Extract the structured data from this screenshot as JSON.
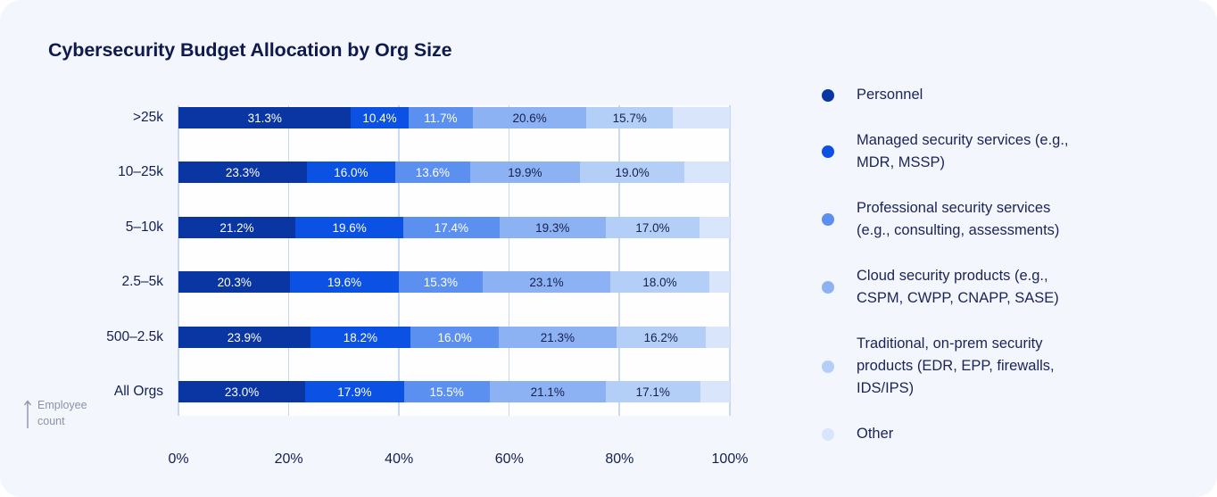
{
  "title": "Cybersecurity Budget Allocation by Org Size",
  "axis": {
    "x_ticks": [
      "0%",
      "20%",
      "40%",
      "60%",
      "80%",
      "100%"
    ],
    "y_note": "Employee count"
  },
  "colors": {
    "card_background": "#F3F6FD",
    "plot_background": "#FEFEFF",
    "gridline": "#C9D9F0",
    "title_text": "#0E1A4D",
    "axis_text": "#13204E",
    "legend_text": "#1B2456",
    "note_text": "#8B93A7"
  },
  "legend": {
    "items": [
      {
        "label": "Personnel",
        "color": "#0A36A3"
      },
      {
        "label": "Managed security services (e.g., MDR, MSSP)",
        "color": "#0B51E4"
      },
      {
        "label": "Professional security services (e.g., consulting, assessments)",
        "color": "#5C90F0"
      },
      {
        "label": "Cloud security products (e.g., CSPM, CWPP, CNAPP, SASE)",
        "color": "#8DB2F3"
      },
      {
        "label": "Traditional, on-prem security products (EDR, EPP, firewalls, IDS/IPS)",
        "color": "#B3CFF8"
      },
      {
        "label": "Other",
        "color": "#D8E5FB"
      }
    ]
  },
  "chart_data": {
    "type": "bar",
    "variant": "horizontal-stacked-percent",
    "title": "Cybersecurity Budget Allocation by Org Size",
    "categories": [
      ">25k",
      "10–25k",
      "5–10k",
      "2.5–5k",
      "500–2.5k",
      "All Orgs"
    ],
    "category_axis_note": "Employee count",
    "series": [
      {
        "name": "Personnel",
        "color": "#0A36A3",
        "label_color": "#FFFFFF",
        "labels_shown": true,
        "values": [
          31.3,
          23.3,
          21.2,
          20.3,
          23.9,
          23.0
        ]
      },
      {
        "name": "Managed security services (e.g., MDR, MSSP)",
        "color": "#0B51E4",
        "label_color": "#FFFFFF",
        "labels_shown": true,
        "values": [
          10.4,
          16.0,
          19.6,
          19.6,
          18.2,
          17.9
        ]
      },
      {
        "name": "Professional security services (e.g., consulting, assessments)",
        "color": "#5C90F0",
        "label_color": "#FFFFFF",
        "labels_shown": true,
        "values": [
          11.7,
          13.6,
          17.4,
          15.3,
          16.0,
          15.5
        ]
      },
      {
        "name": "Cloud security products (e.g., CSPM, CWPP, CNAPP, SASE)",
        "color": "#8DB2F3",
        "label_color": "#16204E",
        "labels_shown": true,
        "values": [
          20.6,
          19.9,
          19.3,
          23.1,
          21.3,
          21.1
        ]
      },
      {
        "name": "Traditional, on-prem security products (EDR, EPP, firewalls, IDS/IPS)",
        "color": "#B3CFF8",
        "label_color": "#16204E",
        "labels_shown": true,
        "values": [
          15.7,
          19.0,
          17.0,
          18.0,
          16.2,
          17.1
        ]
      },
      {
        "name": "Other",
        "color": "#D8E5FB",
        "label_color": null,
        "labels_shown": false,
        "values": [
          10.3,
          8.2,
          5.5,
          3.7,
          4.4,
          5.4
        ]
      }
    ],
    "xlim": [
      0,
      100
    ],
    "x_tick_labels": [
      "0%",
      "20%",
      "40%",
      "60%",
      "80%",
      "100%"
    ],
    "value_suffix": "%",
    "grid": "vertical",
    "legend_position": "right"
  }
}
